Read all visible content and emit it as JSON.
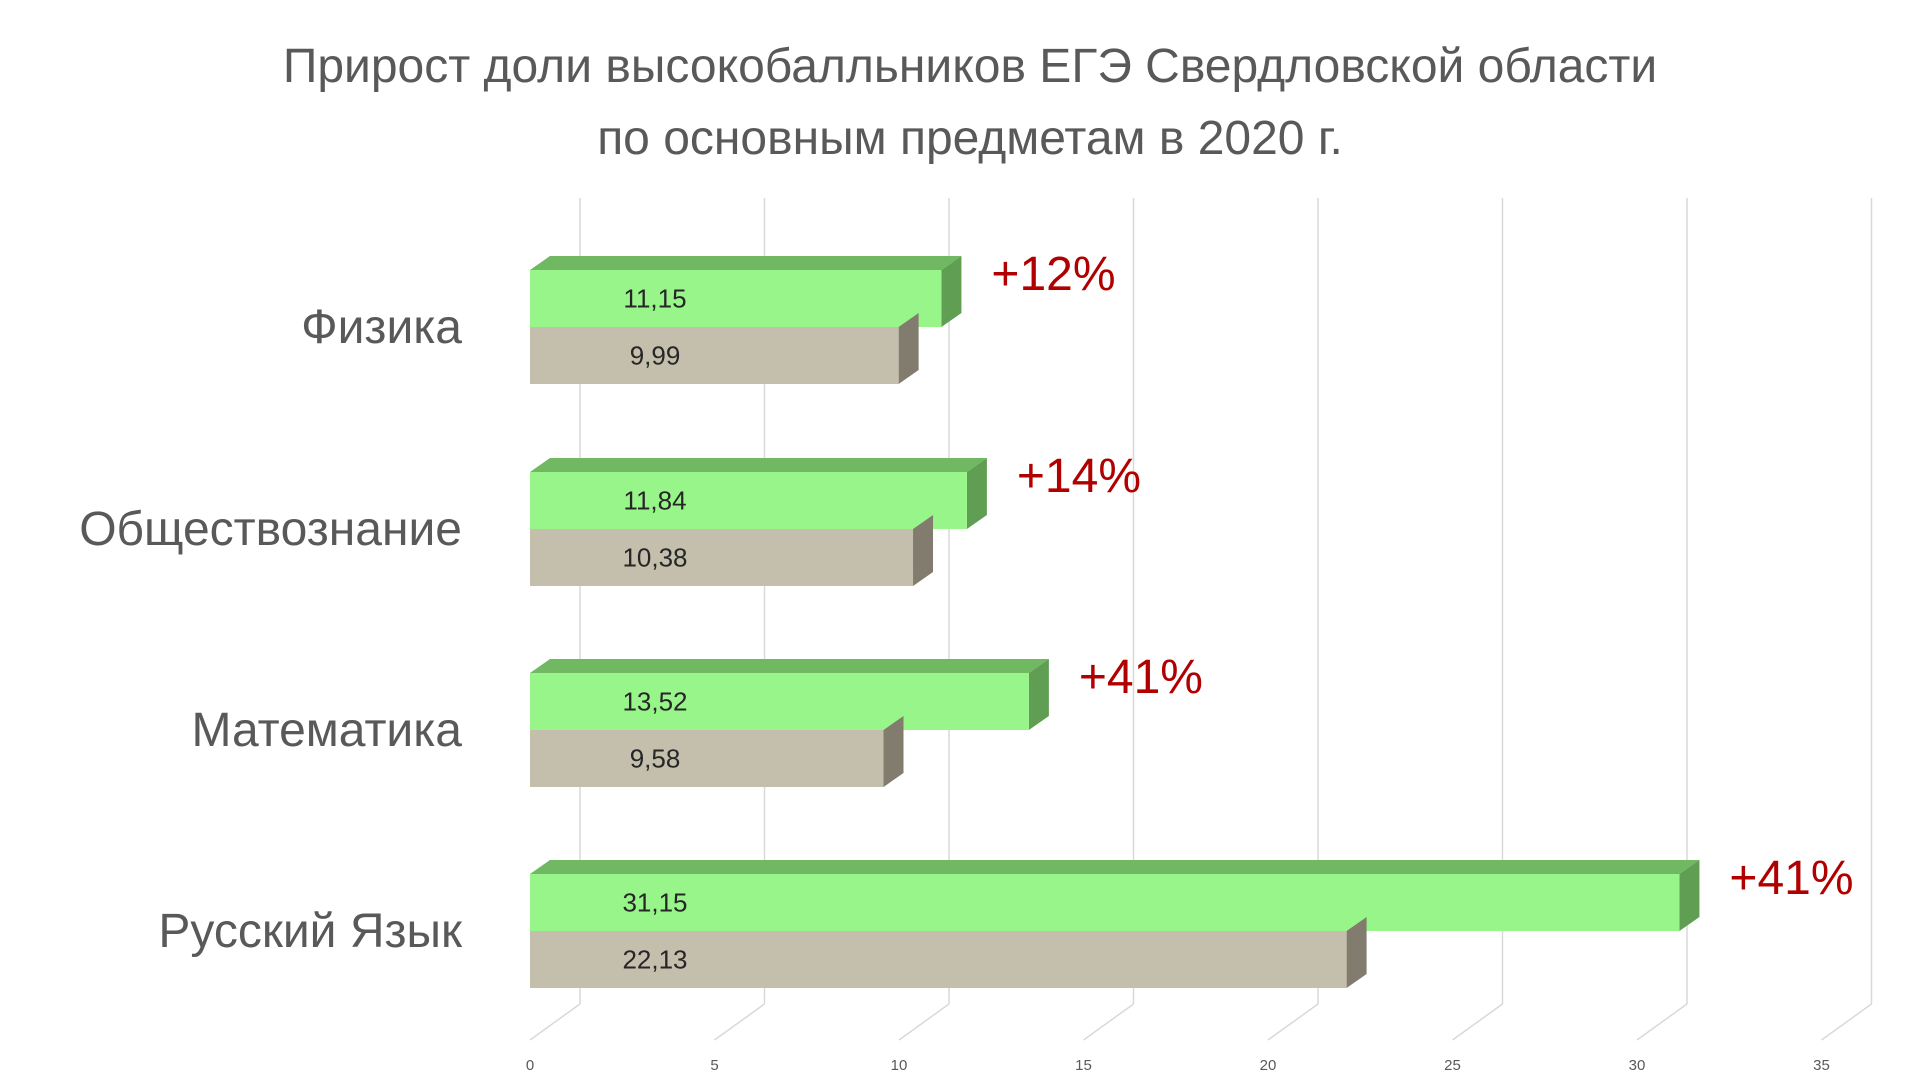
{
  "chart_data": {
    "type": "bar",
    "orientation": "horizontal",
    "style": "3d",
    "title": "Прирост доли высокобалльников ЕГЭ Свердловской области",
    "subtitle": "по основным предметам в 2020 г.",
    "categories": [
      "Физика",
      "Обществознание",
      "Математика",
      "Русский Язык"
    ],
    "series": [
      {
        "values": [
          11.15,
          11.84,
          13.52,
          31.15
        ],
        "labels": [
          "11,15",
          "11,84",
          "13,52",
          "31,15"
        ],
        "color": "#98f58a",
        "top_color": "#71b862",
        "side_color": "#5f9e53"
      },
      {
        "values": [
          9.99,
          10.38,
          9.58,
          22.13
        ],
        "labels": [
          "9,99",
          "10,38",
          "9,58",
          "22,13"
        ],
        "color": "#c4bfad",
        "top_color": "#9a9585",
        "side_color": "#827c6e"
      }
    ],
    "growth_labels": [
      "+12%",
      "+14%",
      "+41%",
      "+41%"
    ],
    "growth_color": "#b00000",
    "xlim": [
      0,
      35
    ],
    "x_ticks": [
      0,
      5,
      10,
      15,
      20,
      25,
      30,
      35
    ],
    "grid": true,
    "legend": "none"
  }
}
